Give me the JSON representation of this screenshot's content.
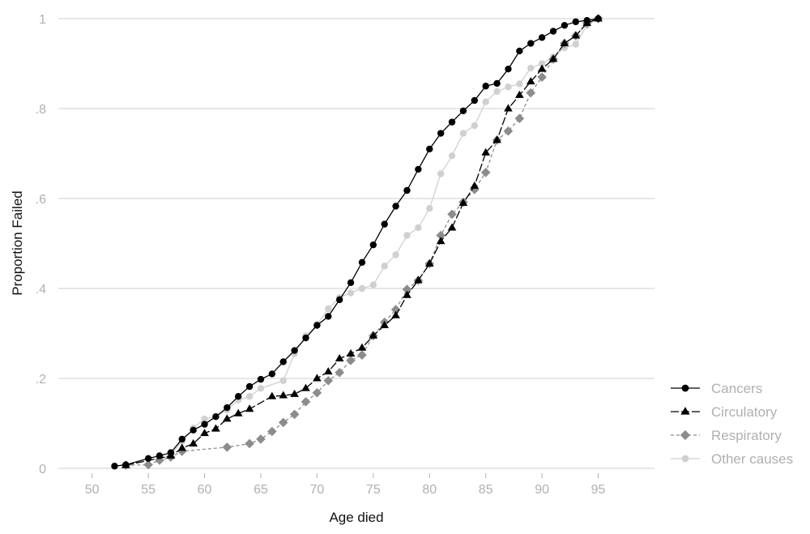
{
  "chart_data": {
    "type": "line",
    "title": "",
    "xlabel": "Age died",
    "ylabel": "Proportion Failed",
    "xlim": [
      47,
      100
    ],
    "ylim": [
      0,
      1
    ],
    "xticks": [
      50,
      55,
      60,
      65,
      70,
      75,
      80,
      85,
      90,
      95
    ],
    "xtick_labels": [
      "50",
      "55",
      "60",
      "65",
      "70",
      "75",
      "80",
      "85",
      "90",
      "95"
    ],
    "yticks": [
      0,
      0.2,
      0.4,
      0.6,
      0.8,
      1
    ],
    "ytick_labels": [
      "0",
      ".2",
      ".4",
      ".6",
      ".8",
      "1"
    ],
    "grid": "horizontal",
    "legend_position": "right",
    "series": [
      {
        "name": "Cancers",
        "color": "#000000",
        "marker": "circle",
        "dash": "solid",
        "points": [
          [
            52,
            0.005
          ],
          [
            53,
            0.008
          ],
          [
            55,
            0.022
          ],
          [
            56,
            0.028
          ],
          [
            57,
            0.035
          ],
          [
            58,
            0.065
          ],
          [
            59,
            0.085
          ],
          [
            60,
            0.098
          ],
          [
            61,
            0.115
          ],
          [
            62,
            0.135
          ],
          [
            63,
            0.16
          ],
          [
            64,
            0.182
          ],
          [
            65,
            0.198
          ],
          [
            66,
            0.21
          ],
          [
            67,
            0.237
          ],
          [
            68,
            0.262
          ],
          [
            69,
            0.29
          ],
          [
            70,
            0.318
          ],
          [
            71,
            0.338
          ],
          [
            72,
            0.375
          ],
          [
            73,
            0.413
          ],
          [
            74,
            0.458
          ],
          [
            75,
            0.497
          ],
          [
            76,
            0.543
          ],
          [
            77,
            0.583
          ],
          [
            78,
            0.618
          ],
          [
            79,
            0.665
          ],
          [
            80,
            0.71
          ],
          [
            81,
            0.745
          ],
          [
            82,
            0.77
          ],
          [
            83,
            0.795
          ],
          [
            84,
            0.818
          ],
          [
            85,
            0.85
          ],
          [
            86,
            0.856
          ],
          [
            87,
            0.888
          ],
          [
            88,
            0.928
          ],
          [
            89,
            0.945
          ],
          [
            90,
            0.958
          ],
          [
            91,
            0.972
          ],
          [
            92,
            0.985
          ],
          [
            93,
            0.993
          ],
          [
            94,
            0.996
          ],
          [
            95,
            1.0
          ]
        ]
      },
      {
        "name": "Circulatory",
        "color": "#000000",
        "marker": "triangle",
        "dash": "longdash",
        "points": [
          [
            53,
            0.007
          ],
          [
            57,
            0.028
          ],
          [
            58,
            0.045
          ],
          [
            59,
            0.055
          ],
          [
            60,
            0.078
          ],
          [
            61,
            0.088
          ],
          [
            62,
            0.11
          ],
          [
            63,
            0.122
          ],
          [
            64,
            0.132
          ],
          [
            66,
            0.16
          ],
          [
            67,
            0.162
          ],
          [
            68,
            0.165
          ],
          [
            69,
            0.178
          ],
          [
            70,
            0.2
          ],
          [
            71,
            0.215
          ],
          [
            72,
            0.244
          ],
          [
            73,
            0.255
          ],
          [
            74,
            0.268
          ],
          [
            75,
            0.295
          ],
          [
            76,
            0.318
          ],
          [
            77,
            0.34
          ],
          [
            78,
            0.385
          ],
          [
            79,
            0.418
          ],
          [
            80,
            0.455
          ],
          [
            81,
            0.505
          ],
          [
            82,
            0.535
          ],
          [
            83,
            0.59
          ],
          [
            84,
            0.628
          ],
          [
            85,
            0.702
          ],
          [
            86,
            0.73
          ],
          [
            87,
            0.8
          ],
          [
            88,
            0.83
          ],
          [
            89,
            0.86
          ],
          [
            90,
            0.888
          ],
          [
            91,
            0.91
          ],
          [
            92,
            0.945
          ],
          [
            93,
            0.962
          ],
          [
            94,
            0.99
          ],
          [
            95,
            1.0
          ]
        ]
      },
      {
        "name": "Respiratory",
        "color": "#8c8c8c",
        "marker": "diamond",
        "dash": "shortdash",
        "points": [
          [
            53,
            0.007
          ],
          [
            55,
            0.008
          ],
          [
            56,
            0.018
          ],
          [
            57,
            0.025
          ],
          [
            58,
            0.038
          ],
          [
            62,
            0.047
          ],
          [
            64,
            0.055
          ],
          [
            65,
            0.065
          ],
          [
            66,
            0.082
          ],
          [
            67,
            0.102
          ],
          [
            68,
            0.12
          ],
          [
            69,
            0.148
          ],
          [
            70,
            0.168
          ],
          [
            71,
            0.195
          ],
          [
            72,
            0.213
          ],
          [
            73,
            0.24
          ],
          [
            74,
            0.252
          ],
          [
            75,
            0.295
          ],
          [
            76,
            0.325
          ],
          [
            77,
            0.353
          ],
          [
            78,
            0.398
          ],
          [
            79,
            0.418
          ],
          [
            80,
            0.455
          ],
          [
            81,
            0.518
          ],
          [
            82,
            0.565
          ],
          [
            83,
            0.592
          ],
          [
            84,
            0.62
          ],
          [
            85,
            0.658
          ],
          [
            86,
            0.73
          ],
          [
            87,
            0.75
          ],
          [
            88,
            0.778
          ],
          [
            89,
            0.835
          ],
          [
            90,
            0.87
          ],
          [
            91,
            0.91
          ],
          [
            92,
            0.945
          ],
          [
            93,
            0.962
          ],
          [
            94,
            0.99
          ],
          [
            95,
            1.0
          ]
        ]
      },
      {
        "name": "Other causes",
        "color": "#d0d0d0",
        "marker": "circle",
        "dash": "solid",
        "points": [
          [
            56,
            0.02
          ],
          [
            57,
            0.03
          ],
          [
            58,
            0.06
          ],
          [
            59,
            0.09
          ],
          [
            60,
            0.11
          ],
          [
            61,
            0.115
          ],
          [
            62,
            0.13
          ],
          [
            63,
            0.152
          ],
          [
            64,
            0.16
          ],
          [
            65,
            0.178
          ],
          [
            67,
            0.195
          ],
          [
            68,
            0.255
          ],
          [
            69,
            0.295
          ],
          [
            70,
            0.32
          ],
          [
            71,
            0.355
          ],
          [
            72,
            0.38
          ],
          [
            73,
            0.39
          ],
          [
            74,
            0.4
          ],
          [
            75,
            0.408
          ],
          [
            76,
            0.45
          ],
          [
            77,
            0.475
          ],
          [
            78,
            0.518
          ],
          [
            79,
            0.535
          ],
          [
            80,
            0.578
          ],
          [
            81,
            0.655
          ],
          [
            82,
            0.695
          ],
          [
            83,
            0.745
          ],
          [
            84,
            0.762
          ],
          [
            85,
            0.815
          ],
          [
            86,
            0.838
          ],
          [
            87,
            0.848
          ],
          [
            88,
            0.855
          ],
          [
            89,
            0.89
          ],
          [
            90,
            0.9
          ],
          [
            91,
            0.915
          ],
          [
            92,
            0.935
          ],
          [
            93,
            0.943
          ],
          [
            94,
            0.985
          ],
          [
            95,
            1.0
          ]
        ]
      }
    ]
  }
}
